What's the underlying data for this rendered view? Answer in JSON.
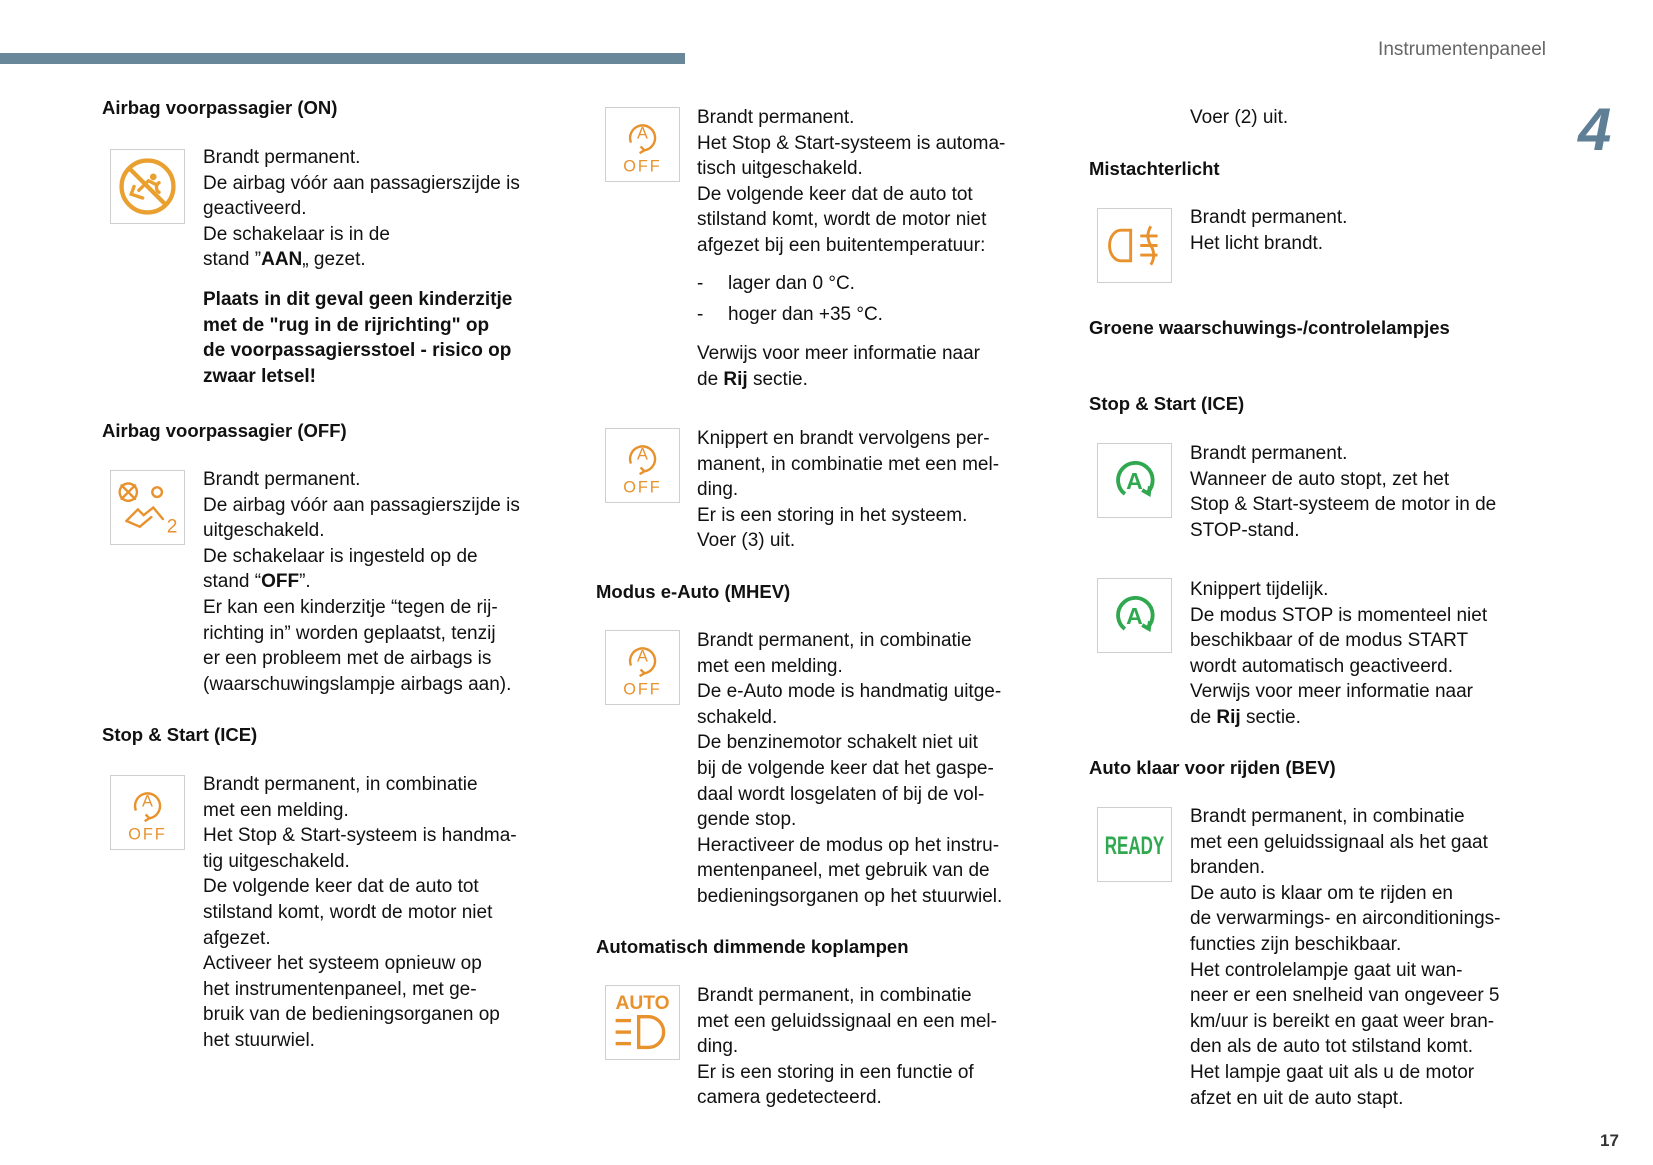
{
  "header": {
    "running_title": "Instrumentenpaneel",
    "chapter": "4",
    "page_number": "17"
  },
  "colors": {
    "bar": "#688899",
    "orange": "#e8922e",
    "amber": "#e9a030",
    "green": "#2fa84f"
  },
  "icons": {
    "off_a": "A",
    "off_label": "OFF",
    "auto_label": "AUTO",
    "green_a": "A",
    "ready_label": "READY",
    "airbag_off_num": "2"
  },
  "col1": {
    "h1": "Airbag voorpassagier (ON)",
    "p1": [
      "Brandt permanent.",
      "De airbag vóór aan passagierszijde is",
      "geactiveerd.",
      "De schakelaar is in de",
      [
        "stand ”",
        {
          "b": "AAN"
        },
        "„ gezet."
      ]
    ],
    "p1_warning": [
      "Plaats in dit geval geen kinderzitje",
      "met de \"rug in de rijrichting\" op",
      "de voorpassagiersstoel - risico op",
      "zwaar letsel!"
    ],
    "h2": "Airbag voorpassagier (OFF)",
    "p2": [
      "Brandt permanent.",
      "De airbag vóór aan passagierszijde is",
      "uitgeschakeld.",
      "De schakelaar is ingesteld op de",
      [
        "stand “",
        {
          "b": "OFF"
        },
        "”."
      ],
      "Er kan een kinderzitje “tegen de rij-",
      "richting in” worden geplaatst, tenzij",
      "er een probleem met de airbags is",
      "(waarschuwingslampje airbags aan)."
    ],
    "h3": "Stop & Start (ICE)",
    "p3": [
      "Brandt permanent, in combinatie",
      "met een melding.",
      "Het Stop & Start-systeem is handma-",
      "tig uitgeschakeld.",
      "De volgende keer dat de auto tot",
      "stilstand komt, wordt de motor niet",
      "afgezet.",
      "Activeer het systeem opnieuw op",
      "het instrumentenpaneel, met ge-",
      "bruik van de bedieningsorganen op",
      "het stuurwiel."
    ]
  },
  "col2": {
    "p1": [
      "Brandt permanent.",
      "Het Stop & Start-systeem is automa-",
      "tisch uitgeschakeld.",
      "De volgende keer dat de auto tot",
      "stilstand komt, wordt de motor niet",
      "afgezet bij een buitentemperatuur:"
    ],
    "list": [
      {
        "dash": "-",
        "text": "lager dan 0 °C."
      },
      {
        "dash": "-",
        "text": "hoger dan +35 °C."
      }
    ],
    "p1_ref": [
      "Verwijs voor meer informatie naar",
      [
        "de ",
        {
          "b": "Rij"
        },
        " sectie."
      ]
    ],
    "p2": [
      "Knippert en brandt vervolgens per-",
      "manent, in combinatie met een mel-",
      "ding.",
      "Er is een storing in het systeem.",
      "Voer (3) uit."
    ],
    "h2": "Modus e-Auto (MHEV)",
    "p3": [
      "Brandt permanent, in combinatie",
      "met een melding.",
      "De e-Auto mode is handmatig uitge-",
      "schakeld.",
      "De benzinemotor schakelt niet uit",
      "bij de volgende keer dat het gaspe-",
      "daal wordt losgelaten of bij de vol-",
      "gende stop.",
      "Heractiveer de modus op het instru-",
      "mentenpaneel, met gebruik van de",
      "bedieningsorganen op het stuurwiel."
    ],
    "h3": "Automatisch dimmende koplampen",
    "p4": [
      "Brandt permanent, in combinatie",
      "met een geluidssignaal en een mel-",
      "ding.",
      "Er is een storing in een functie of",
      "camera gedetecteerd."
    ]
  },
  "col3": {
    "p0": [
      "Voer (2) uit."
    ],
    "h1": "Mistachterlicht",
    "p1": [
      "Brandt permanent.",
      "Het licht brandt."
    ],
    "h2": "Groene waarschuwings-/controlelampjes",
    "h3": "Stop & Start (ICE)",
    "p2": [
      "Brandt permanent.",
      "Wanneer de auto stopt, zet het",
      "Stop & Start-systeem de motor in de",
      "STOP-stand."
    ],
    "p3": [
      "Knippert tijdelijk.",
      "De modus STOP is momenteel niet",
      "beschikbaar of de modus START",
      "wordt automatisch geactiveerd.",
      "Verwijs voor meer informatie naar",
      [
        "de ",
        {
          "b": "Rij"
        },
        " sectie."
      ]
    ],
    "h4": "Auto klaar voor rijden (BEV)",
    "p4": [
      "Brandt permanent, in combinatie",
      "met een geluidssignaal als het gaat",
      "branden.",
      "De auto is klaar om te rijden en",
      "de verwarmings- en airconditionings-",
      "functies zijn beschikbaar.",
      "Het controlelampje gaat uit wan-",
      "neer er een snelheid van ongeveer 5",
      "km/uur is bereikt en gaat weer bran-",
      "den als de auto tot stilstand komt.",
      "Het lampje gaat uit als u de motor",
      "afzet en uit de auto stapt."
    ]
  }
}
